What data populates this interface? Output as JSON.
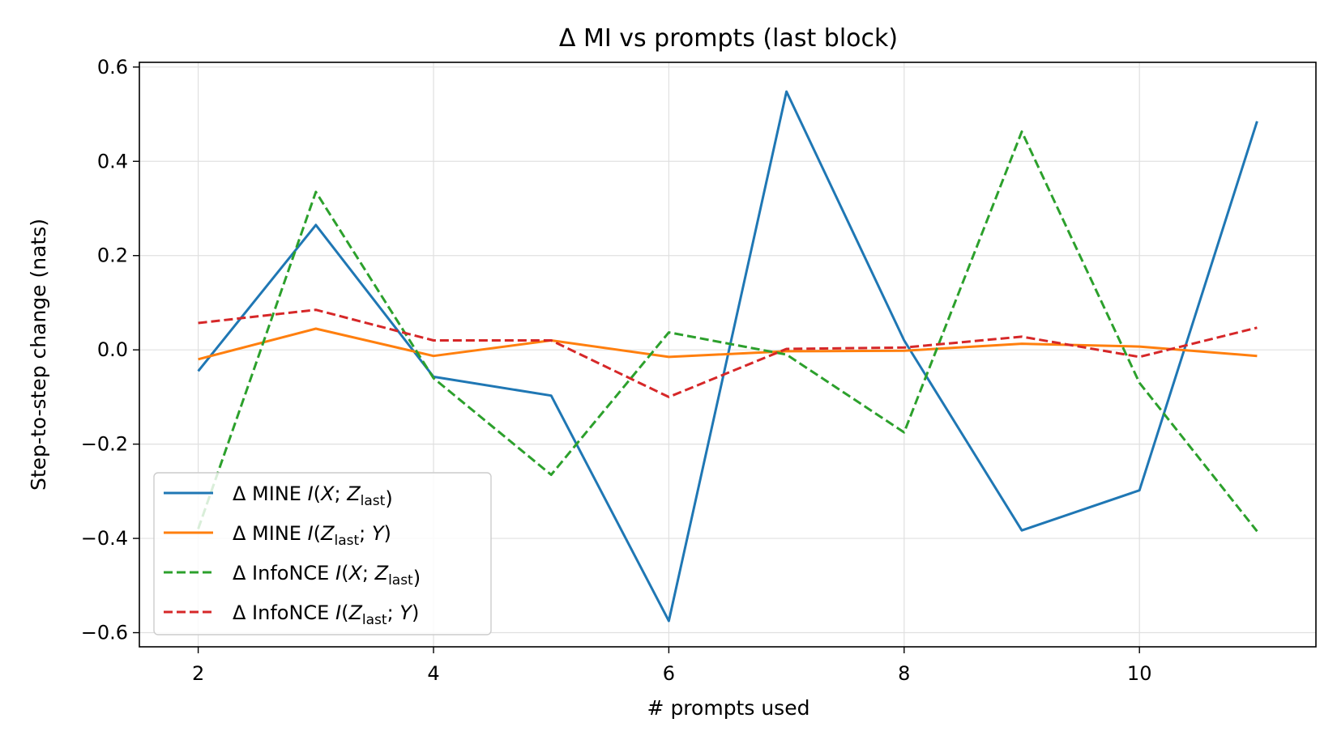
{
  "chart_data": {
    "type": "line",
    "title": "Δ MI vs prompts (last block)",
    "xlabel": "# prompts used",
    "ylabel": "Step-to-step change (nats)",
    "xlim": [
      1.5,
      11.5
    ],
    "ylim": [
      -0.63,
      0.61
    ],
    "xticks": [
      2,
      4,
      6,
      8,
      10
    ],
    "xtick_labels": [
      "2",
      "4",
      "6",
      "8",
      "10"
    ],
    "yticks": [
      -0.6,
      -0.4,
      -0.2,
      0.0,
      0.2,
      0.4,
      0.6
    ],
    "ytick_labels": [
      "−0.6",
      "−0.4",
      "−0.2",
      "0.0",
      "0.2",
      "0.4",
      "0.6"
    ],
    "grid": true,
    "legend_position": "lower-left",
    "x": [
      2,
      3,
      4,
      5,
      6,
      7,
      8,
      9,
      10,
      11
    ],
    "series": [
      {
        "name": "Δ MINE  I(X; Z_last)",
        "legend": {
          "prefix": "Δ MINE  ",
          "i": "I",
          "open": "(",
          "v1": "X",
          "sep": "; ",
          "v2": "Z",
          "sub": "last",
          "v3": "",
          "close": ")"
        },
        "color": "#1f77b4",
        "dash": "solid",
        "values": [
          -0.045,
          0.265,
          -0.057,
          -0.097,
          -0.575,
          0.548,
          0.02,
          -0.383,
          -0.298,
          0.485
        ]
      },
      {
        "name": "Δ MINE  I(Z_last; Y)",
        "legend": {
          "prefix": "Δ MINE  ",
          "i": "I",
          "open": "(",
          "v1": "Z",
          "sub": "last",
          "sep": "; ",
          "v2": "Y",
          "close": ")"
        },
        "color": "#ff7f0e",
        "dash": "solid",
        "values": [
          -0.02,
          0.045,
          -0.013,
          0.02,
          -0.015,
          -0.003,
          -0.002,
          0.013,
          0.007,
          -0.013
        ]
      },
      {
        "name": "Δ InfoNCE  I(X; Z_last)",
        "legend": {
          "prefix": "Δ InfoNCE  ",
          "i": "I",
          "open": "(",
          "v1": "X",
          "sep": "; ",
          "v2": "Z",
          "sub": "last",
          "close": ")"
        },
        "color": "#2ca02c",
        "dash": "dashed",
        "values": [
          -0.38,
          0.335,
          -0.06,
          -0.265,
          0.037,
          -0.01,
          -0.175,
          0.463,
          -0.07,
          -0.385
        ]
      },
      {
        "name": "Δ InfoNCE  I(Z_last; Y)",
        "legend": {
          "prefix": "Δ InfoNCE  ",
          "i": "I",
          "open": "(",
          "v1": "Z",
          "sub": "last",
          "sep": "; ",
          "v2": "Y",
          "close": ")"
        },
        "color": "#d62728",
        "dash": "dashed",
        "values": [
          0.057,
          0.085,
          0.02,
          0.02,
          -0.1,
          0.002,
          0.005,
          0.028,
          -0.015,
          0.047
        ]
      }
    ]
  }
}
